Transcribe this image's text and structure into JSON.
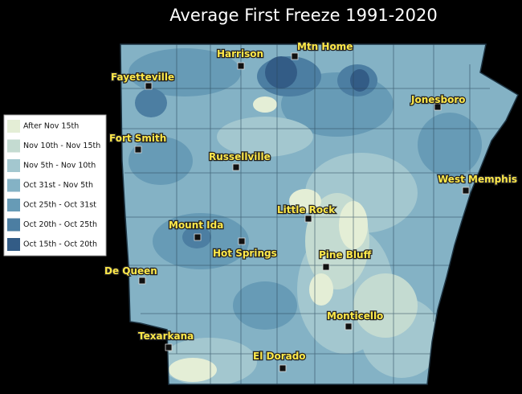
{
  "title": "Average First Freeze 1991-2020",
  "legend": [
    {
      "label": "After Nov 15th",
      "color": "#e4eed6"
    },
    {
      "label": "Nov 10th - Nov 15th",
      "color": "#c4dbd1"
    },
    {
      "label": "Nov  5th - Nov 10th",
      "color": "#a3c7cf"
    },
    {
      "label": "Oct 31st - Nov 5th",
      "color": "#84b2c5"
    },
    {
      "label": "Oct 25th - Oct 31st",
      "color": "#679bb6"
    },
    {
      "label": "Oct 20th - Oct  25th",
      "color": "#4c7ea2"
    },
    {
      "label": "Oct 15th - Oct  20th",
      "color": "#335c86"
    }
  ],
  "cities": [
    "Harrison",
    "Mtn Home",
    "Fayetteville",
    "Jonesboro",
    "Fort Smith",
    "Russellville",
    "West Memphis",
    "Little Rock",
    "Mount Ida",
    "Hot Springs",
    "Pine Bluff",
    "De Queen",
    "Monticello",
    "Texarkana",
    "El Dorado"
  ]
}
